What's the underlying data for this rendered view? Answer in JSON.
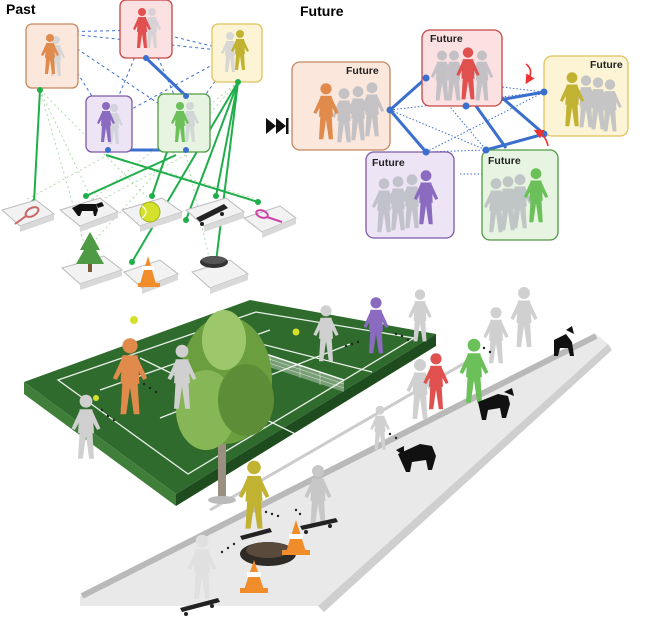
{
  "panels": {
    "past_label": "Past",
    "future_label": "Future"
  },
  "future_box_tag": "Future",
  "colors": {
    "orange": "#e08a4c",
    "red": "#e0504f",
    "olive": "#c2b232",
    "purple": "#8a6bc0",
    "green": "#6cc05a",
    "link_green": "#1fae4a",
    "link_blue": "#3b6fce",
    "court": "#2f6b2c",
    "sidewalk": "#e9e9e9"
  },
  "people": {
    "past": [
      "orange",
      "red",
      "olive",
      "purple",
      "green"
    ],
    "future": [
      "orange",
      "red",
      "olive",
      "purple",
      "green"
    ]
  },
  "objects": [
    "tennis-racket",
    "dog",
    "tennis-ball",
    "skateboard",
    "tennis-racket",
    "tree",
    "traffic-cone",
    "manhole-cover"
  ]
}
